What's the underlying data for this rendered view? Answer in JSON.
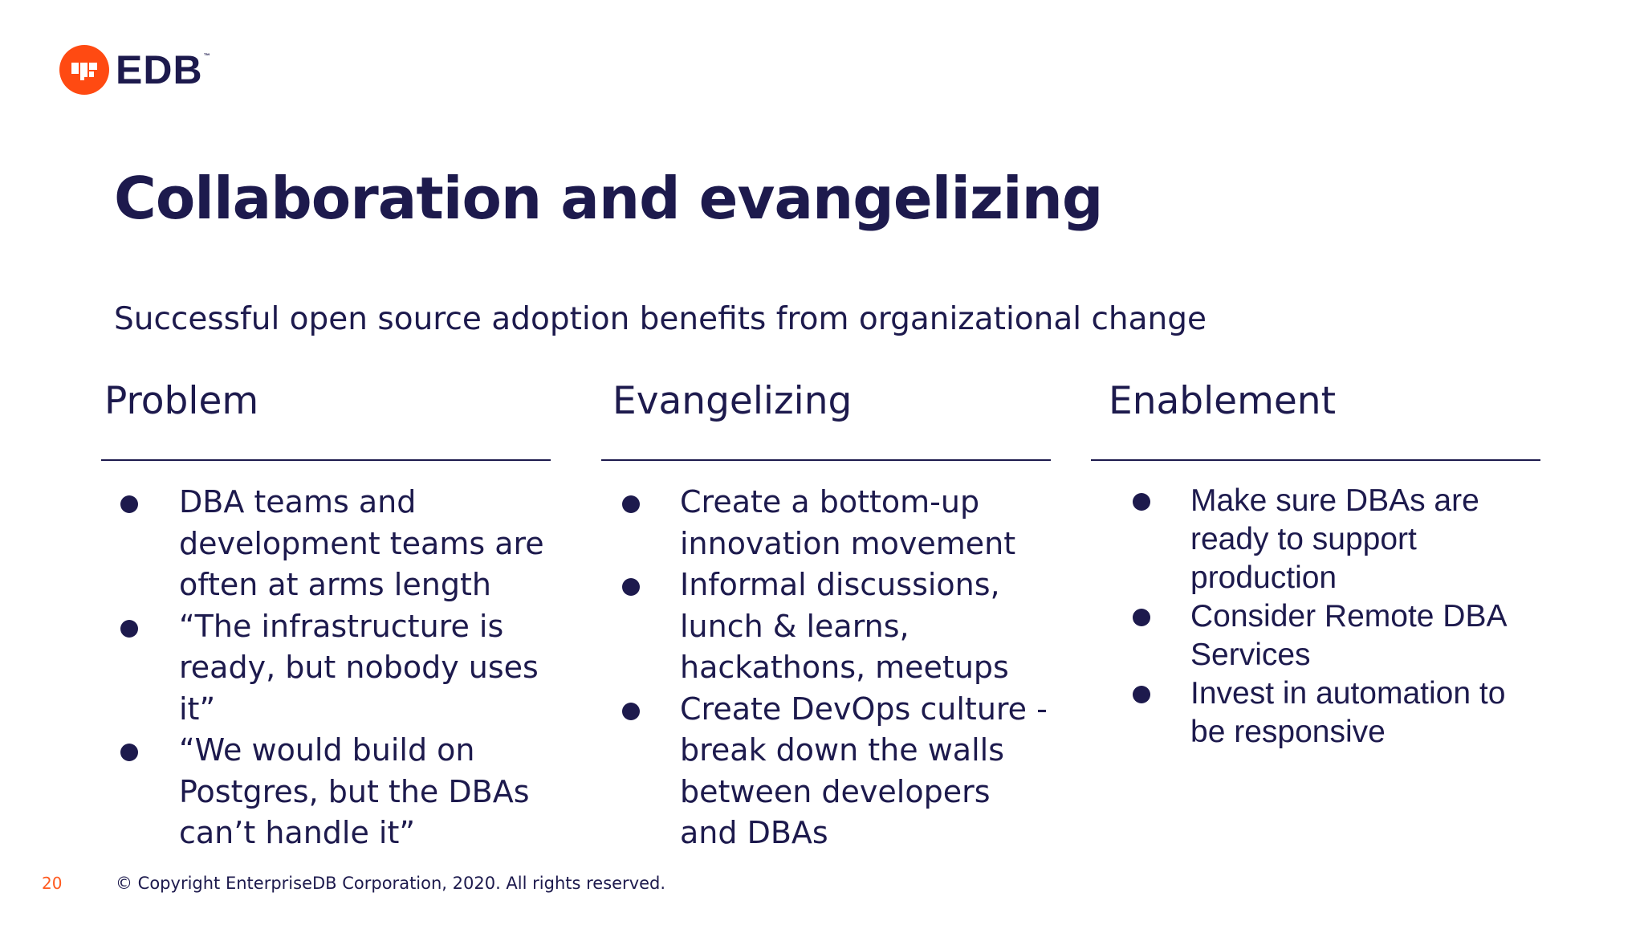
{
  "logo": {
    "brand": "EDB",
    "tm": "™",
    "brand_color": "#ff4a12"
  },
  "title": "Collaboration and evangelizing",
  "subtitle": "Successful open source adoption benefits from organizational change",
  "columns": [
    {
      "heading": "Problem",
      "items": [
        "DBA teams and development teams are often at arms length",
        "“The infrastructure is ready, but nobody uses it”",
        "“We would build on Postgres, but the DBAs can’t handle it”"
      ]
    },
    {
      "heading": "Evangelizing",
      "items": [
        "Create a bottom-up innovation movement",
        "Informal discussions, lunch & learns, hackathons, meetups",
        "Create DevOps culture - break down the walls between developers and DBAs"
      ]
    },
    {
      "heading": "Enablement",
      "items": [
        "Make sure DBAs are ready to support production",
        "Consider Remote DBA Services",
        "Invest in automation to be responsive"
      ]
    }
  ],
  "footer": {
    "page_number": "20",
    "copyright": "© Copyright EnterpriseDB Corporation, 2020. All rights reserved."
  },
  "colors": {
    "text": "#1d1a4d",
    "accent": "#ff5a1f"
  }
}
